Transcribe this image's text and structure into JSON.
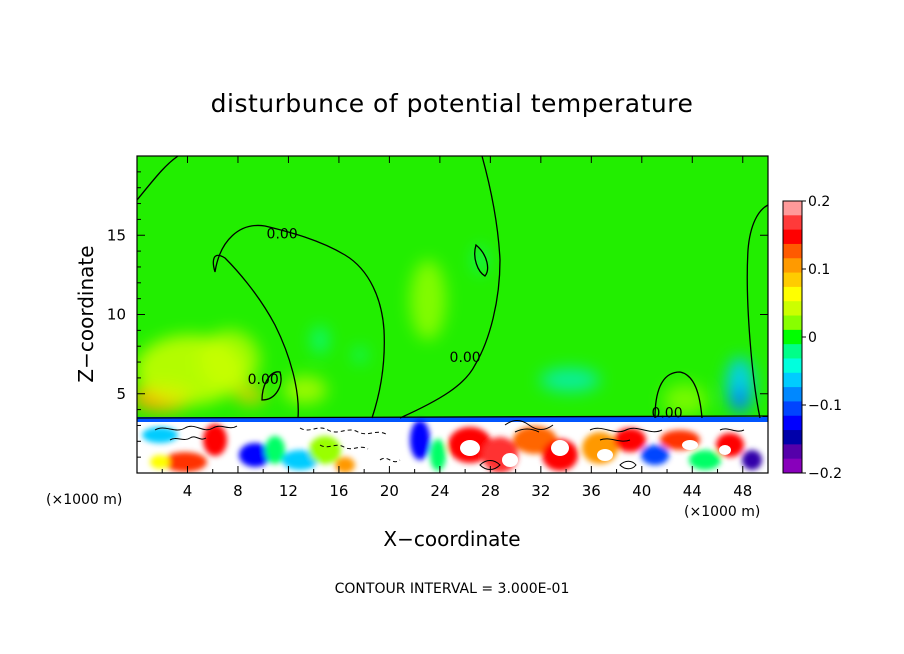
{
  "chart_data": {
    "type": "heatmap",
    "title": "disturbunce of potential temperature",
    "xlabel": "X−coordinate",
    "ylabel": "Z−coordinate",
    "x_unit": "(×1000 m)",
    "y_unit": "(×1000 m)",
    "xlim": [
      0,
      50
    ],
    "ylim": [
      0,
      20
    ],
    "x_ticks": [
      4,
      8,
      12,
      16,
      20,
      24,
      28,
      32,
      36,
      40,
      44,
      48
    ],
    "x_tick_labels": [
      "4",
      "8",
      "12",
      "16",
      "20",
      "24",
      "28",
      "32",
      "36",
      "40",
      "44",
      "48"
    ],
    "y_ticks": [
      5,
      10,
      15
    ],
    "y_tick_labels": [
      "5",
      "10",
      "15"
    ],
    "colorbar": {
      "range": [
        -0.2,
        0.2
      ],
      "tick_values": [
        0.2,
        0.1,
        0,
        -0.1,
        -0.2
      ],
      "tick_labels": [
        "0.2",
        "0.1",
        "0",
        "−0.1",
        "−0.2"
      ],
      "colors": [
        "#ff9a9a",
        "#ff3a3a",
        "#ff0000",
        "#ff5a00",
        "#ff9a00",
        "#ffcc00",
        "#ffff00",
        "#ccff00",
        "#88ff00",
        "#00ff00",
        "#00ff88",
        "#00ffdd",
        "#00ccff",
        "#0088ff",
        "#0044ff",
        "#0000ff",
        "#0000aa",
        "#5500aa",
        "#8800bb"
      ]
    },
    "contour_labels": [
      {
        "text": "0.00",
        "x": 11.5,
        "z": 14.8
      },
      {
        "text": "0.00",
        "x": 10.0,
        "z": 5.6
      },
      {
        "text": "0.00",
        "x": 26.0,
        "z": 7.0
      },
      {
        "text": "0.00",
        "x": 42.0,
        "z": 3.5
      }
    ],
    "contour_interval_text": "CONTOUR INTERVAL = 3.000E-01"
  }
}
